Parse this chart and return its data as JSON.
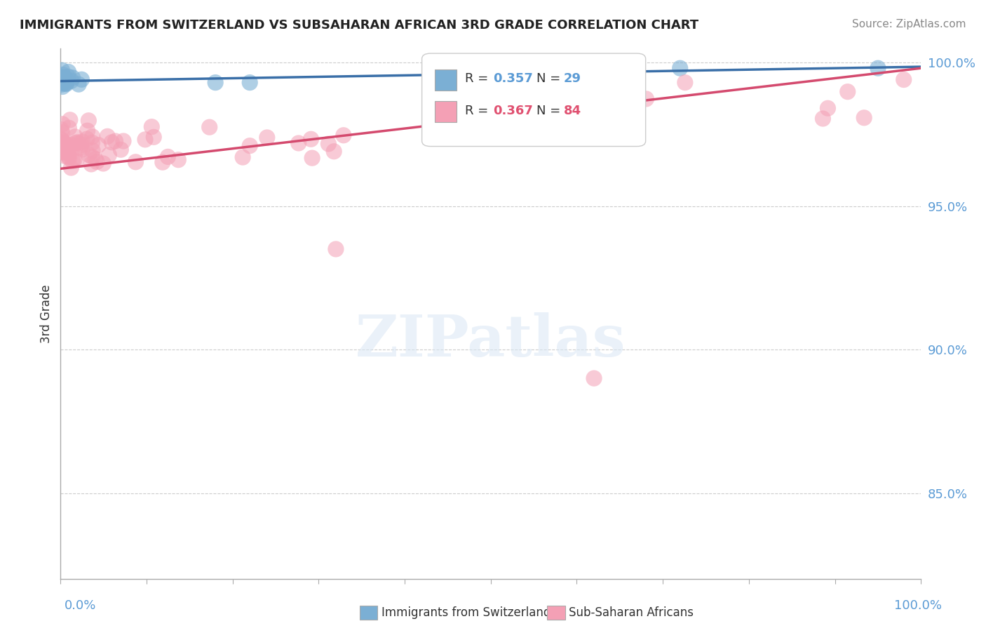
{
  "title": "IMMIGRANTS FROM SWITZERLAND VS SUBSAHARAN AFRICAN 3RD GRADE CORRELATION CHART",
  "source": "Source: ZipAtlas.com",
  "ylabel": "3rd Grade",
  "ytick_vals": [
    0.85,
    0.9,
    0.95,
    1.0
  ],
  "legend_blue_r": "0.357",
  "legend_blue_n": "29",
  "legend_pink_r": "0.367",
  "legend_pink_n": "84",
  "legend_label_blue": "Immigrants from Switzerland",
  "legend_label_pink": "Sub-Saharan Africans",
  "blue_color": "#7bafd4",
  "pink_color": "#f4a0b5",
  "blue_line_color": "#3a6fa8",
  "pink_line_color": "#d44a6e",
  "xlim": [
    0.0,
    1.0
  ],
  "ylim": [
    0.82,
    1.005
  ],
  "blue_line_y": [
    0.9935,
    0.9985
  ],
  "pink_line_y": [
    0.963,
    0.998
  ],
  "watermark": "ZIPatlas",
  "background_color": "#ffffff",
  "grid_color": "#cccccc"
}
